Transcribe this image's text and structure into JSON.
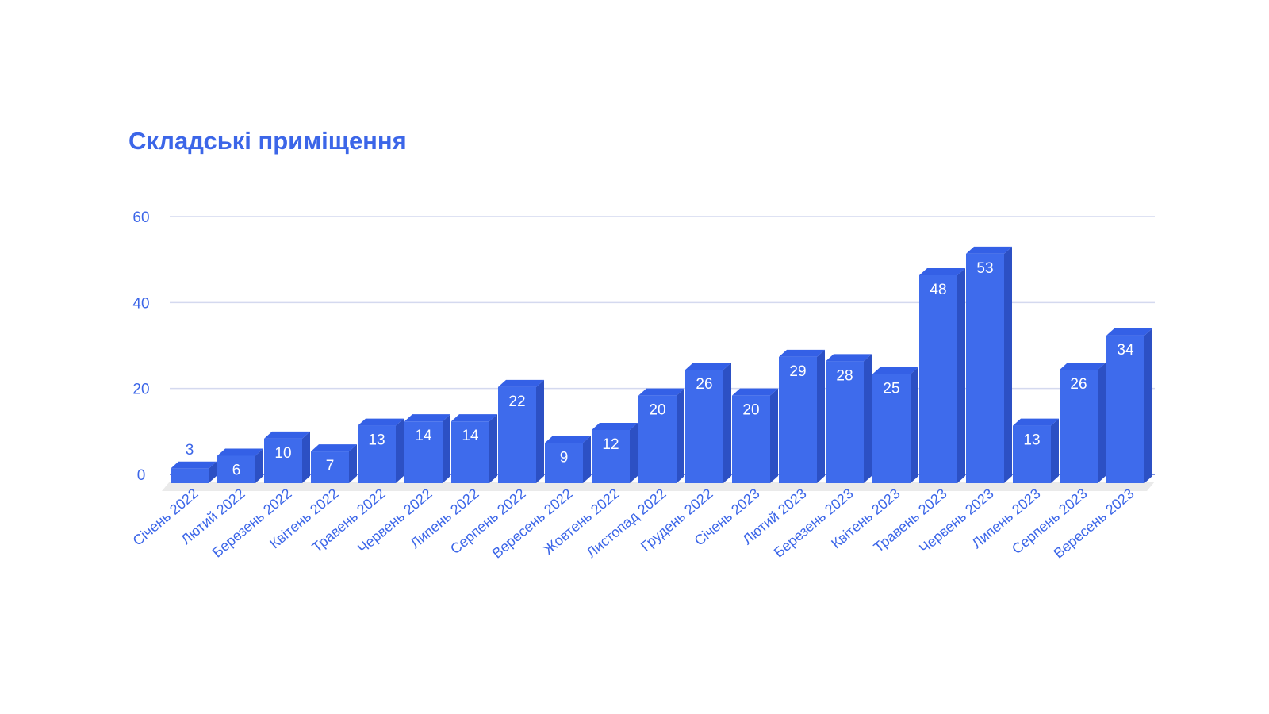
{
  "chart_data": {
    "type": "bar",
    "title": "Складські приміщення",
    "xlabel": "",
    "ylabel": "",
    "categories": [
      "Січень 2022",
      "Лютий 2022",
      "Березень 2022",
      "Квітень 2022",
      "Травень 2022",
      "Червень 2022",
      "Липень 2022",
      "Серпень 2022",
      "Вересень 2022",
      "Жовтень 2022",
      "Листопад 2022",
      "Грудень 2022",
      "Січень 2023",
      "Лютий 2023",
      "Березень 2023",
      "Квітень 2023",
      "Травень 2023",
      "Червень 2023",
      "Липень 2023",
      "Серпень 2023",
      "Вересень 2023"
    ],
    "values": [
      3,
      6,
      10,
      7,
      13,
      14,
      14,
      22,
      9,
      12,
      20,
      26,
      20,
      29,
      28,
      25,
      48,
      53,
      13,
      26,
      34
    ],
    "ylim": [
      0,
      60
    ],
    "yticks": [
      0,
      20,
      40,
      60
    ],
    "grid": true,
    "legend": "none",
    "bar_style": "3d",
    "data_labels": true
  },
  "colors": {
    "bar_front": "#3e6bec",
    "bar_top": "#3460e6",
    "bar_side": "#2c50c4",
    "text": "#3c66e8",
    "grid": "#d4d9ef",
    "axis": "#4a66d9",
    "floor": "#eaeaea",
    "label_inside": "#ffffff"
  }
}
